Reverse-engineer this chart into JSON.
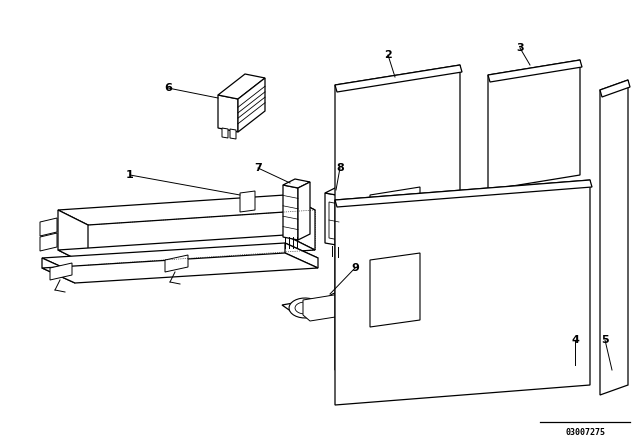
{
  "bg_color": "#ffffff",
  "line_color": "#000000",
  "label_color": "#000000",
  "part_number": "03007275",
  "figsize": [
    6.4,
    4.48
  ],
  "dpi": 100
}
